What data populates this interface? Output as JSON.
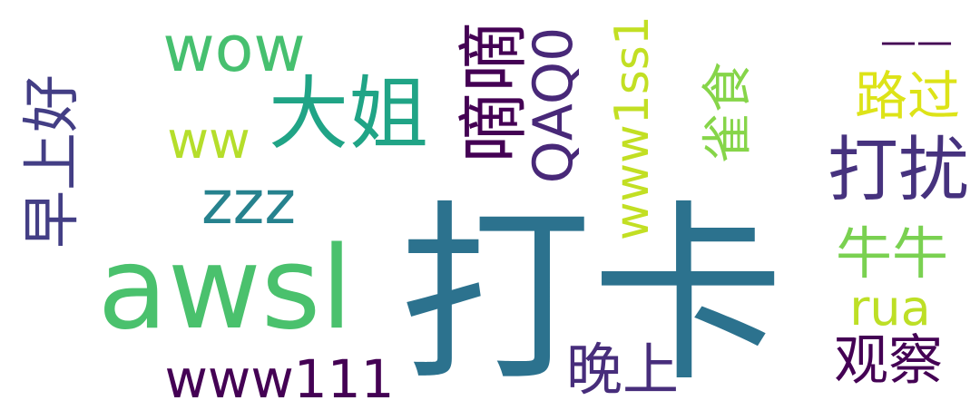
{
  "word_cloud": {
    "words": [
      {
        "text": "打卡",
        "color": "#2c728e"
      },
      {
        "text": "awsl",
        "color": "#4ac16d"
      },
      {
        "text": "大姐",
        "color": "#20a486"
      },
      {
        "text": "wow",
        "color": "#46c06f"
      },
      {
        "text": "嘀嘀",
        "color": "#440154"
      },
      {
        "text": "QAQ0",
        "color": "#482878"
      },
      {
        "text": "www1ss1",
        "color": "#c2df23"
      },
      {
        "text": "打扰",
        "color": "#46327e"
      },
      {
        "text": "早上好",
        "color": "#433e85"
      },
      {
        "text": "ww",
        "color": "#b5de2b"
      },
      {
        "text": "zzz",
        "color": "#26828e"
      },
      {
        "text": "雀食",
        "color": "#86d549"
      },
      {
        "text": "路过",
        "color": "#dde318"
      },
      {
        "text": "——",
        "color": "#440154"
      },
      {
        "text": "牛牛",
        "color": "#7ad151"
      },
      {
        "text": "rua",
        "color": "#bddf26"
      },
      {
        "text": "www111",
        "color": "#440154"
      },
      {
        "text": "晚上",
        "color": "#472d7b"
      },
      {
        "text": "观察",
        "color": "#440154"
      }
    ]
  }
}
